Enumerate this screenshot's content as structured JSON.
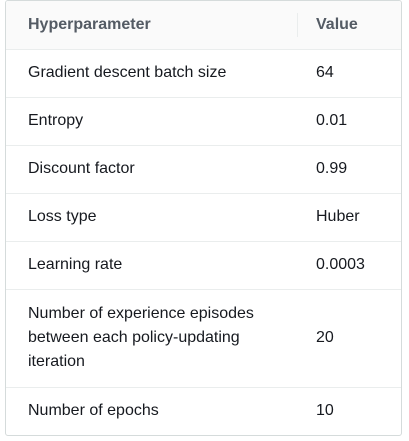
{
  "table": {
    "headers": {
      "hyperparameter": "Hyperparameter",
      "value": "Value"
    },
    "rows": [
      {
        "name": "Gradient descent batch size",
        "value": "64"
      },
      {
        "name": "Entropy",
        "value": "0.01"
      },
      {
        "name": "Discount factor",
        "value": "0.99"
      },
      {
        "name": "Loss type",
        "value": "Huber"
      },
      {
        "name": "Learning rate",
        "value": "0.0003"
      },
      {
        "name": "Number of experience episodes between each policy-updating iteration",
        "value": "20"
      },
      {
        "name": "Number of epochs",
        "value": "10"
      }
    ]
  }
}
